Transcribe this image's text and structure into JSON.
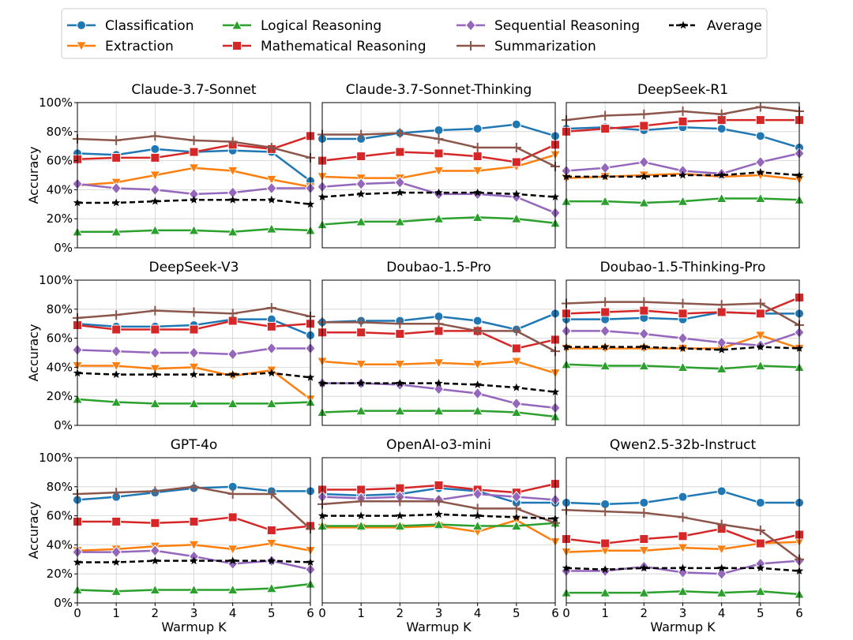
{
  "chart_data": {
    "type": "line",
    "xlabel": "Warmup K",
    "ylabel": "Accuracy",
    "ylim": [
      0,
      100
    ],
    "xlim": [
      0,
      6
    ],
    "x": [
      0,
      1,
      2,
      3,
      4,
      5,
      6
    ],
    "y_ticks": [
      "0%",
      "20%",
      "40%",
      "60%",
      "80%",
      "100%"
    ],
    "grid": true,
    "legend_position": "top-center",
    "series_styles": [
      {
        "name": "Classification",
        "color": "#1f77b4",
        "marker": "circle",
        "dashed": false
      },
      {
        "name": "Extraction",
        "color": "#ff7f0e",
        "marker": "triangle-down",
        "dashed": false
      },
      {
        "name": "Logical Reasoning",
        "color": "#2ca02c",
        "marker": "triangle-up",
        "dashed": false
      },
      {
        "name": "Mathematical Reasoning",
        "color": "#d62728",
        "marker": "square",
        "dashed": false
      },
      {
        "name": "Sequential Reasoning",
        "color": "#9467bd",
        "marker": "diamond",
        "dashed": false
      },
      {
        "name": "Summarization",
        "color": "#8c564b",
        "marker": "plus",
        "dashed": false
      },
      {
        "name": "Average",
        "color": "#000000",
        "marker": "star",
        "dashed": true
      }
    ],
    "panels": [
      {
        "title": "Claude-3.7-Sonnet",
        "series": [
          {
            "name": "Classification",
            "values": [
              65,
              64,
              68,
              66,
              67,
              66,
              46
            ]
          },
          {
            "name": "Extraction",
            "values": [
              43,
              45,
              50,
              55,
              53,
              47,
              42
            ]
          },
          {
            "name": "Logical Reasoning",
            "values": [
              11,
              11,
              12,
              12,
              11,
              13,
              12
            ]
          },
          {
            "name": "Mathematical Reasoning",
            "values": [
              61,
              62,
              62,
              66,
              71,
              68,
              77
            ]
          },
          {
            "name": "Sequential Reasoning",
            "values": [
              44,
              41,
              40,
              37,
              38,
              41,
              41
            ]
          },
          {
            "name": "Summarization",
            "values": [
              75,
              74,
              77,
              74,
              73,
              69,
              62
            ]
          },
          {
            "name": "Average",
            "values": [
              31,
              31,
              32,
              33,
              33,
              33,
              30
            ]
          }
        ]
      },
      {
        "title": "Claude-3.7-Sonnet-Thinking",
        "series": [
          {
            "name": "Classification",
            "values": [
              75,
              75,
              79,
              81,
              82,
              85,
              77
            ]
          },
          {
            "name": "Extraction",
            "values": [
              49,
              48,
              48,
              53,
              53,
              56,
              64
            ]
          },
          {
            "name": "Logical Reasoning",
            "values": [
              16,
              18,
              18,
              20,
              21,
              20,
              17
            ]
          },
          {
            "name": "Mathematical Reasoning",
            "values": [
              60,
              63,
              66,
              65,
              63,
              59,
              71
            ]
          },
          {
            "name": "Sequential Reasoning",
            "values": [
              42,
              44,
              45,
              37,
              37,
              35,
              24
            ]
          },
          {
            "name": "Summarization",
            "values": [
              78,
              78,
              79,
              75,
              69,
              69,
              56
            ]
          },
          {
            "name": "Average",
            "values": [
              35,
              37,
              38,
              38,
              38,
              37,
              35
            ]
          }
        ]
      },
      {
        "title": "DeepSeek-R1",
        "series": [
          {
            "name": "Classification",
            "values": [
              82,
              83,
              81,
              83,
              82,
              77,
              69
            ]
          },
          {
            "name": "Extraction",
            "values": [
              48,
              49,
              50,
              51,
              49,
              50,
              47
            ]
          },
          {
            "name": "Logical Reasoning",
            "values": [
              32,
              32,
              31,
              32,
              34,
              34,
              33
            ]
          },
          {
            "name": "Mathematical Reasoning",
            "values": [
              80,
              82,
              84,
              87,
              88,
              88,
              88
            ]
          },
          {
            "name": "Sequential Reasoning",
            "values": [
              53,
              55,
              59,
              53,
              51,
              59,
              65
            ]
          },
          {
            "name": "Summarization",
            "values": [
              88,
              91,
              92,
              94,
              92,
              97,
              94
            ]
          },
          {
            "name": "Average",
            "values": [
              49,
              49,
              49,
              50,
              50,
              52,
              50
            ]
          }
        ]
      },
      {
        "title": "DeepSeek-V3",
        "series": [
          {
            "name": "Classification",
            "values": [
              70,
              68,
              68,
              69,
              73,
              73,
              62
            ]
          },
          {
            "name": "Extraction",
            "values": [
              41,
              41,
              39,
              40,
              34,
              38,
              18
            ]
          },
          {
            "name": "Logical Reasoning",
            "values": [
              18,
              16,
              15,
              15,
              15,
              15,
              16
            ]
          },
          {
            "name": "Mathematical Reasoning",
            "values": [
              69,
              66,
              66,
              66,
              72,
              68,
              70
            ]
          },
          {
            "name": "Sequential Reasoning",
            "values": [
              52,
              51,
              50,
              50,
              49,
              53,
              53
            ]
          },
          {
            "name": "Summarization",
            "values": [
              74,
              76,
              79,
              78,
              77,
              81,
              75
            ]
          },
          {
            "name": "Average",
            "values": [
              36,
              35,
              35,
              35,
              35,
              36,
              33
            ]
          }
        ]
      },
      {
        "title": "Doubao-1.5-Pro",
        "series": [
          {
            "name": "Classification",
            "values": [
              71,
              72,
              72,
              75,
              72,
              66,
              77
            ]
          },
          {
            "name": "Extraction",
            "values": [
              44,
              42,
              42,
              43,
              42,
              44,
              36
            ]
          },
          {
            "name": "Logical Reasoning",
            "values": [
              9,
              10,
              10,
              10,
              10,
              9,
              6
            ]
          },
          {
            "name": "Mathematical Reasoning",
            "values": [
              64,
              64,
              63,
              65,
              65,
              53,
              59
            ]
          },
          {
            "name": "Sequential Reasoning",
            "values": [
              29,
              29,
              28,
              25,
              22,
              15,
              12
            ]
          },
          {
            "name": "Summarization",
            "values": [
              71,
              71,
              70,
              70,
              65,
              65,
              51
            ]
          },
          {
            "name": "Average",
            "values": [
              29,
              29,
              29,
              29,
              28,
              26,
              23
            ]
          }
        ]
      },
      {
        "title": "Doubao-1.5-Thinking-Pro",
        "series": [
          {
            "name": "Classification",
            "values": [
              73,
              73,
              74,
              73,
              78,
              77,
              77
            ]
          },
          {
            "name": "Extraction",
            "values": [
              53,
              53,
              53,
              53,
              53,
              62,
              53
            ]
          },
          {
            "name": "Logical Reasoning",
            "values": [
              42,
              41,
              41,
              40,
              39,
              41,
              40
            ]
          },
          {
            "name": "Mathematical Reasoning",
            "values": [
              77,
              78,
              79,
              77,
              78,
              77,
              88
            ]
          },
          {
            "name": "Sequential Reasoning",
            "values": [
              65,
              65,
              63,
              60,
              57,
              55,
              64
            ]
          },
          {
            "name": "Summarization",
            "values": [
              84,
              85,
              85,
              84,
              83,
              84,
              69
            ]
          },
          {
            "name": "Average",
            "values": [
              54,
              54,
              54,
              53,
              52,
              54,
              53
            ]
          }
        ]
      },
      {
        "title": "GPT-4o",
        "series": [
          {
            "name": "Classification",
            "values": [
              71,
              73,
              76,
              79,
              80,
              77,
              77
            ]
          },
          {
            "name": "Extraction",
            "values": [
              36,
              37,
              39,
              40,
              37,
              41,
              36
            ]
          },
          {
            "name": "Logical Reasoning",
            "values": [
              9,
              8,
              9,
              9,
              9,
              10,
              13
            ]
          },
          {
            "name": "Mathematical Reasoning",
            "values": [
              56,
              56,
              55,
              56,
              59,
              50,
              53
            ]
          },
          {
            "name": "Sequential Reasoning",
            "values": [
              35,
              35,
              36,
              32,
              27,
              29,
              23
            ]
          },
          {
            "name": "Summarization",
            "values": [
              75,
              76,
              77,
              80,
              75,
              75,
              51
            ]
          },
          {
            "name": "Average",
            "values": [
              28,
              28,
              29,
              29,
              29,
              29,
              28
            ]
          }
        ]
      },
      {
        "title": "OpenAI-o3-mini",
        "series": [
          {
            "name": "Classification",
            "values": [
              75,
              74,
              75,
              79,
              77,
              69,
              69
            ]
          },
          {
            "name": "Extraction",
            "values": [
              52,
              52,
              52,
              53,
              49,
              57,
              42
            ]
          },
          {
            "name": "Logical Reasoning",
            "values": [
              53,
              53,
              53,
              54,
              53,
              53,
              55
            ]
          },
          {
            "name": "Mathematical Reasoning",
            "values": [
              78,
              78,
              79,
              81,
              78,
              76,
              82
            ]
          },
          {
            "name": "Sequential Reasoning",
            "values": [
              73,
              72,
              73,
              71,
              75,
              73,
              71
            ]
          },
          {
            "name": "Summarization",
            "values": [
              68,
              70,
              70,
              70,
              65,
              65,
              55
            ]
          },
          {
            "name": "Average",
            "values": [
              60,
              60,
              60,
              61,
              60,
              59,
              58
            ]
          }
        ]
      },
      {
        "title": "Qwen2.5-32b-Instruct",
        "series": [
          {
            "name": "Classification",
            "values": [
              69,
              68,
              69,
              73,
              77,
              69,
              69
            ]
          },
          {
            "name": "Extraction",
            "values": [
              35,
              36,
              36,
              38,
              37,
              41,
              42
            ]
          },
          {
            "name": "Logical Reasoning",
            "values": [
              7,
              7,
              7,
              8,
              7,
              8,
              6
            ]
          },
          {
            "name": "Mathematical Reasoning",
            "values": [
              44,
              41,
              44,
              46,
              51,
              41,
              47
            ]
          },
          {
            "name": "Sequential Reasoning",
            "values": [
              22,
              22,
              25,
              21,
              20,
              27,
              29
            ]
          },
          {
            "name": "Summarization",
            "values": [
              64,
              63,
              62,
              59,
              54,
              50,
              30
            ]
          },
          {
            "name": "Average",
            "values": [
              24,
              23,
              24,
              24,
              24,
              24,
              22
            ]
          }
        ]
      }
    ]
  }
}
